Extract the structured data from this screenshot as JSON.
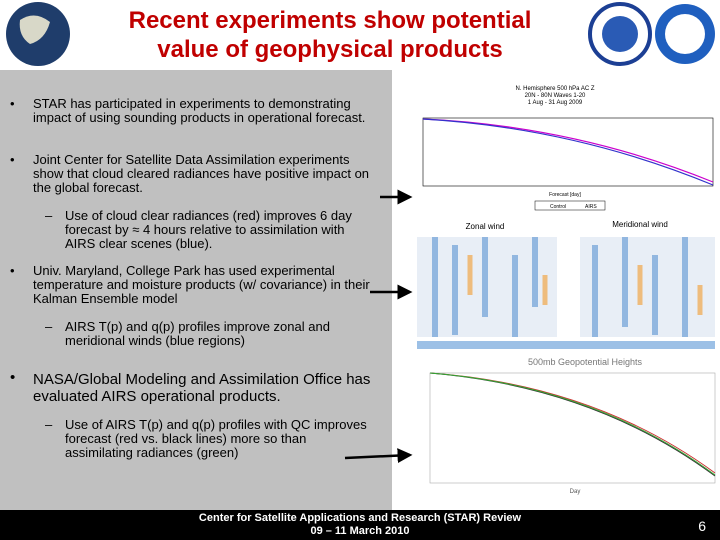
{
  "header": {
    "title": "Recent experiments show potential value of geophysical products"
  },
  "bullets": [
    {
      "text": "STAR has participated in experiments to demonstrating impact of using sounding products in operational forecast.",
      "sub": []
    },
    {
      "text": "Joint Center for Satellite Data Assimilation experiments show that cloud cleared radiances have positive impact on the global forecast.",
      "sub": [
        "Use of cloud clear radiances (red) improves 6 day forecast by ≈ 4 hours relative to assimilation with AIRS clear scenes (blue)."
      ]
    },
    {
      "text": "Univ. Maryland, College Park has used experimental temperature and moisture products (w/ covariance) in their Kalman Ensemble model",
      "sub": [
        "AIRS T(p) and q(p) profiles improve zonal and meridional winds (blue regions)"
      ]
    },
    {
      "text": "NASA/Global Modeling and Assimilation Office has evaluated AIRS operational products.",
      "sub": [
        "Use of AIRS T(p) and q(p) profiles with QC improves forecast (red vs. black lines) more so than assimilating radiances (green)"
      ]
    }
  ],
  "figures": [
    {
      "title": [
        "N. Hemisphere 500 hPa AC Z",
        "20N - 80N Waves 1-20",
        "1 Aug - 31 Aug 2009"
      ],
      "x_label": "Forecast [day]",
      "legend": [
        "Control",
        "AIRS"
      ]
    },
    {
      "panels": [
        "Zonal wind",
        "Meridional wind"
      ]
    },
    {
      "title": "500mb Geopotential Heights",
      "x_label": "Day"
    }
  ],
  "footer": {
    "lines": [
      "Center for Satellite Applications and Research (STAR) Review",
      "09 – 11 March 2010"
    ],
    "page": 6
  }
}
